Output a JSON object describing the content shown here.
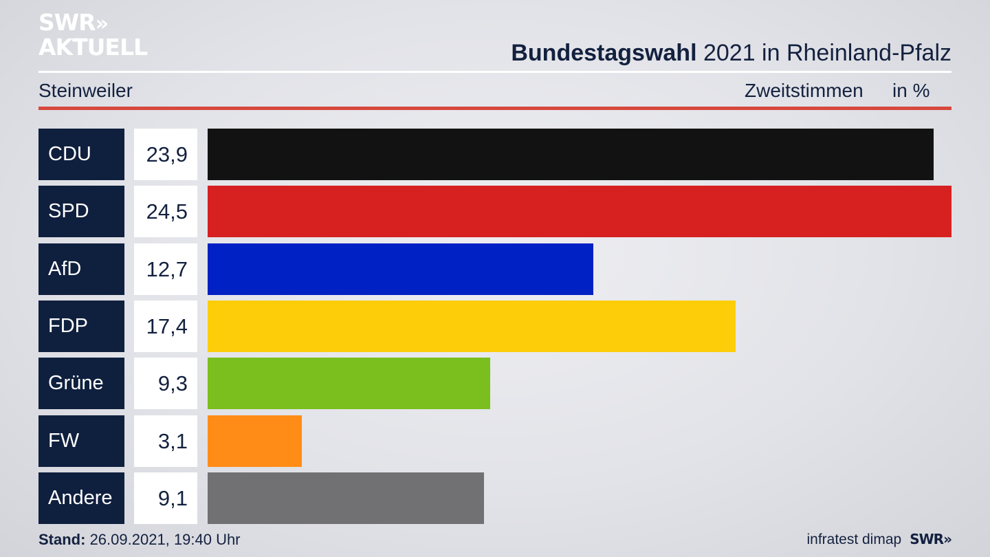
{
  "logo": {
    "line1": "SWR",
    "line1_chevrons": "»",
    "line2": "AKTUELL"
  },
  "header": {
    "title_bold": "Bundestagswahl",
    "title_rest": " 2021 in Rheinland-Pfalz",
    "location": "Steinweiler",
    "measure": "Zweitstimmen",
    "unit": "in %"
  },
  "colors": {
    "title_text": "#13213f",
    "label_bg": "#0f1f3e",
    "rule_red": "#d7483c"
  },
  "chart_data": {
    "type": "bar",
    "orientation": "horizontal",
    "categories": [
      "CDU",
      "SPD",
      "AfD",
      "FDP",
      "Grüne",
      "FW",
      "Andere"
    ],
    "values": [
      23.9,
      24.5,
      12.7,
      17.4,
      9.3,
      3.1,
      9.1
    ],
    "value_labels": [
      "23,9",
      "24,5",
      "12,7",
      "17,4",
      "9,3",
      "3,1",
      "9,1"
    ],
    "bar_colors": [
      "#121212",
      "#d72020",
      "#0021c4",
      "#fecd0a",
      "#7abf1d",
      "#ff8c17",
      "#717173"
    ],
    "xlim": [
      0,
      24.5
    ],
    "title": "Bundestagswahl 2021 in Rheinland-Pfalz",
    "subtitle": "Steinweiler",
    "xlabel": "Zweitstimmen",
    "ylabel": "",
    "unit": "in %"
  },
  "footer": {
    "stand_label": "Stand:",
    "stand_value": " 26.09.2021, 19:40 Uhr",
    "source": "infratest dimap",
    "brand": "SWR",
    "brand_chevrons": "»"
  }
}
